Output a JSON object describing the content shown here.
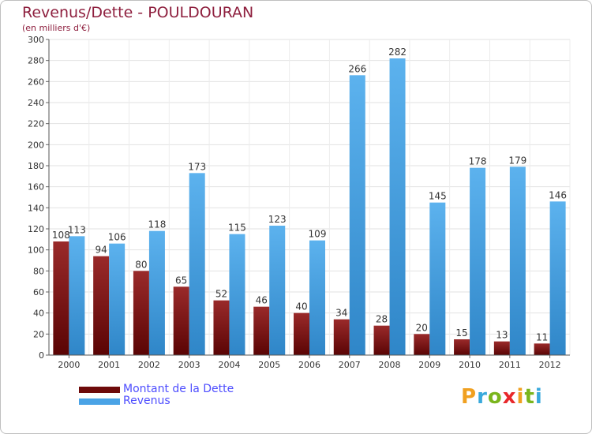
{
  "title": "Revenus/Dette - POULDOURAN",
  "subtitle": "(en milliers d'€)",
  "chart_data": {
    "type": "bar",
    "title": "Revenus/Dette - POULDOURAN",
    "ylabel": "(en milliers d'€)",
    "xlabel": "",
    "categories": [
      "2000",
      "2001",
      "2002",
      "2003",
      "2004",
      "2005",
      "2006",
      "2007",
      "2008",
      "2009",
      "2010",
      "2011",
      "2012"
    ],
    "series": [
      {
        "name": "Montant de la Dette",
        "color": "#7a0b0b",
        "values": [
          108,
          94,
          80,
          65,
          52,
          46,
          40,
          34,
          28,
          20,
          15,
          13,
          11
        ]
      },
      {
        "name": "Revenus",
        "color": "#4aa3e6",
        "values": [
          113,
          106,
          118,
          173,
          115,
          123,
          109,
          266,
          282,
          145,
          178,
          179,
          146
        ]
      }
    ],
    "ylim": [
      0,
      300
    ],
    "yticks": [
      0,
      20,
      40,
      60,
      80,
      100,
      120,
      140,
      160,
      180,
      200,
      220,
      240,
      260,
      280,
      300
    ],
    "grid": true,
    "legend": "bottom-left"
  },
  "legend": {
    "items": [
      {
        "label": "Montant de la Dette",
        "color": "#6e0a0a"
      },
      {
        "label": "Revenus",
        "color": "#4aa3e6"
      }
    ]
  },
  "logo": {
    "letters": [
      "P",
      "r",
      "o",
      "x",
      "i",
      "t",
      "i"
    ],
    "colors": [
      "#f0a020",
      "#39a9dc",
      "#7ab51d",
      "#e8282b",
      "#f0a020",
      "#7ab51d",
      "#39a9dc"
    ]
  }
}
